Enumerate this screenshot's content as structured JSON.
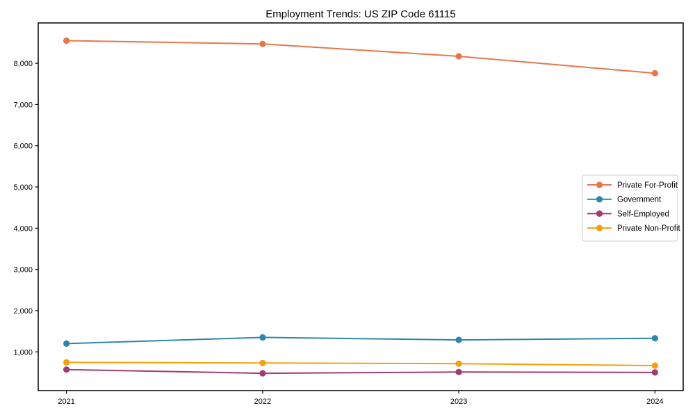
{
  "chart_data": {
    "type": "line",
    "title": "Employment Trends: US ZIP Code 61115",
    "categories": [
      "2021",
      "2022",
      "2023",
      "2024"
    ],
    "series": [
      {
        "name": "Private For-Profit",
        "color": "#E8764A",
        "values": [
          8550,
          8470,
          8170,
          7760
        ]
      },
      {
        "name": "Government",
        "color": "#2E86AB",
        "values": [
          1200,
          1350,
          1290,
          1330
        ]
      },
      {
        "name": "Self-Employed",
        "color": "#A23B72",
        "values": [
          570,
          480,
          510,
          500
        ]
      },
      {
        "name": "Private Non-Profit",
        "color": "#F5A00B",
        "values": [
          745,
          730,
          715,
          665
        ]
      }
    ],
    "xlabel": "",
    "ylabel": "",
    "ylim": [
      60,
      8980
    ],
    "yticks": [
      1000,
      2000,
      3000,
      4000,
      5000,
      6000,
      7000,
      8000
    ],
    "ytick_labels": [
      "1,000",
      "2,000",
      "3,000",
      "4,000",
      "5,000",
      "6,000",
      "7,000",
      "8,000"
    ],
    "grid": false,
    "legend_position": "center-right",
    "marker": "circle",
    "axis_color": "#000000",
    "legend_border_color": "#cccccc",
    "background_color": "#ffffff"
  }
}
